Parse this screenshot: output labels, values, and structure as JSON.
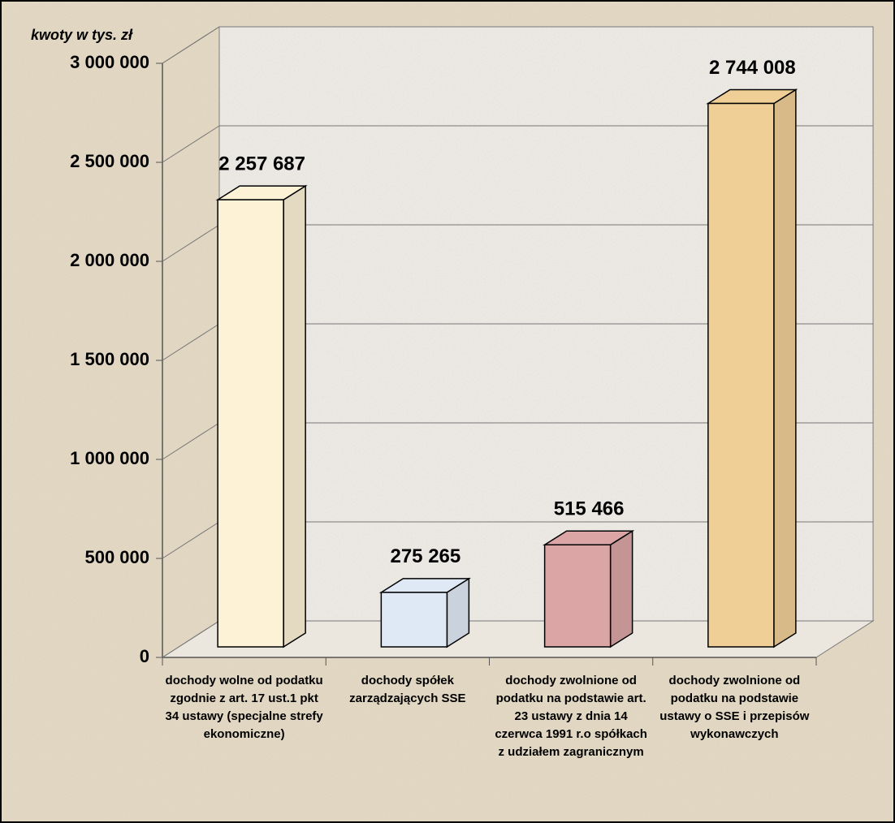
{
  "chart_data": {
    "type": "bar3d",
    "y_axis_label": "kwoty w tys. zł",
    "categories": [
      "dochody wolne od podatku zgodnie z art. 17 ust.1 pkt 34 ustawy (specjalne strefy ekonomiczne)",
      "dochody spółek zarządzających SSE",
      "dochody zwolnione od podatku na podstawie art. 23 ustawy z dnia 14 czerwca 1991 r.o spółkach z udziałem zagranicznym",
      "dochody zwolnione od podatku na podstawie ustawy o SSE i przepisów wykonawczych"
    ],
    "values": [
      2257687,
      275265,
      515466,
      2744008
    ],
    "value_labels": [
      "2 257 687",
      "275 265",
      "515 466",
      "2 744 008"
    ],
    "colors": [
      "#fdf1d6",
      "#dfe9f6",
      "#dba5a5",
      "#efcf96"
    ],
    "ylim": [
      0,
      3000000
    ],
    "yticks": [
      0,
      {
        "value": 500000,
        "label": "500 000"
      },
      {
        "value": 1000000,
        "label": "1 000 000"
      },
      {
        "value": 1500000,
        "label": "1 500 000"
      },
      {
        "value": 2000000,
        "label": "2 000 000"
      },
      {
        "value": 2500000,
        "label": "2 500 000"
      },
      {
        "value": 3000000,
        "label": "3 000 000"
      }
    ],
    "grid": true
  }
}
